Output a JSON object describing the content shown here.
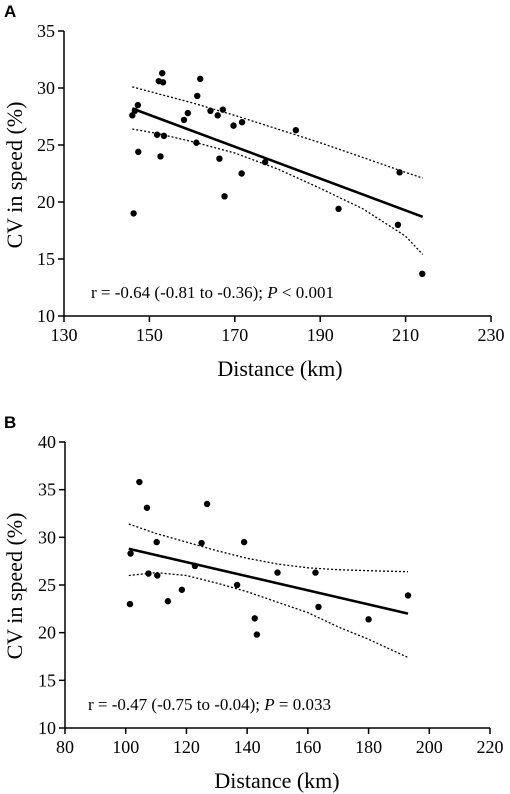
{
  "chart_data": [
    {
      "type": "scatter",
      "panel_label": "A",
      "xlabel": "Distance (km)",
      "ylabel": "CV in speed (%)",
      "xlim": [
        130,
        230
      ],
      "ylim": [
        10,
        35
      ],
      "xticks": [
        130,
        150,
        170,
        190,
        210,
        230
      ],
      "yticks": [
        10,
        15,
        20,
        25,
        30,
        35
      ],
      "grid": false,
      "points": [
        {
          "x": 146.3,
          "y": 19.0
        },
        {
          "x": 146.0,
          "y": 27.6
        },
        {
          "x": 146.6,
          "y": 28.0
        },
        {
          "x": 147.3,
          "y": 28.5
        },
        {
          "x": 147.4,
          "y": 24.4
        },
        {
          "x": 151.8,
          "y": 25.9
        },
        {
          "x": 152.2,
          "y": 30.6
        },
        {
          "x": 152.6,
          "y": 24.0
        },
        {
          "x": 153.0,
          "y": 31.3
        },
        {
          "x": 153.2,
          "y": 30.5
        },
        {
          "x": 153.4,
          "y": 25.8
        },
        {
          "x": 158.1,
          "y": 27.2
        },
        {
          "x": 159.0,
          "y": 27.8
        },
        {
          "x": 161.0,
          "y": 25.2
        },
        {
          "x": 161.2,
          "y": 29.3
        },
        {
          "x": 161.9,
          "y": 30.8
        },
        {
          "x": 164.3,
          "y": 28.0
        },
        {
          "x": 166.0,
          "y": 27.6
        },
        {
          "x": 166.4,
          "y": 23.8
        },
        {
          "x": 167.2,
          "y": 28.1
        },
        {
          "x": 167.6,
          "y": 20.5
        },
        {
          "x": 169.7,
          "y": 26.7
        },
        {
          "x": 171.6,
          "y": 22.5
        },
        {
          "x": 171.7,
          "y": 27.0
        },
        {
          "x": 177.1,
          "y": 23.5
        },
        {
          "x": 184.3,
          "y": 26.3
        },
        {
          "x": 194.3,
          "y": 19.4
        },
        {
          "x": 208.2,
          "y": 18.0
        },
        {
          "x": 208.6,
          "y": 22.6
        },
        {
          "x": 213.9,
          "y": 13.7
        }
      ],
      "fit_line": {
        "x": [
          146,
          214
        ],
        "y": [
          28.2,
          18.7
        ]
      },
      "ci_upper": {
        "x": [
          146,
          152,
          160,
          170,
          180,
          190,
          200,
          210,
          214
        ],
        "y": [
          30.1,
          29.5,
          28.7,
          27.6,
          26.4,
          25.2,
          23.9,
          22.6,
          22.1
        ]
      },
      "ci_lower": {
        "x": [
          146,
          152,
          160,
          170,
          180,
          190,
          200,
          210,
          214
        ],
        "y": [
          26.4,
          26.0,
          25.3,
          24.3,
          22.9,
          21.2,
          19.4,
          17.0,
          15.4
        ]
      },
      "annotation": {
        "prefix": "r = -0.64 (-0.81 to -0.36); ",
        "p_symbol": "P",
        "suffix": " < 0.001"
      }
    },
    {
      "type": "scatter",
      "panel_label": "B",
      "xlabel": "Distance (km)",
      "ylabel": "CV in speed (%)",
      "xlim": [
        80,
        220
      ],
      "ylim": [
        10,
        40
      ],
      "xticks": [
        80,
        100,
        120,
        140,
        160,
        180,
        200,
        220
      ],
      "yticks": [
        10,
        15,
        20,
        25,
        30,
        35,
        40
      ],
      "grid": false,
      "points": [
        {
          "x": 101.4,
          "y": 23.0
        },
        {
          "x": 101.6,
          "y": 28.3
        },
        {
          "x": 104.5,
          "y": 35.8
        },
        {
          "x": 107.0,
          "y": 33.1
        },
        {
          "x": 107.5,
          "y": 26.2
        },
        {
          "x": 110.2,
          "y": 29.5
        },
        {
          "x": 110.4,
          "y": 26.0
        },
        {
          "x": 113.9,
          "y": 23.3
        },
        {
          "x": 118.5,
          "y": 24.5
        },
        {
          "x": 122.8,
          "y": 27.0
        },
        {
          "x": 125.0,
          "y": 29.4
        },
        {
          "x": 126.8,
          "y": 33.5
        },
        {
          "x": 136.7,
          "y": 25.0
        },
        {
          "x": 139.0,
          "y": 29.5
        },
        {
          "x": 142.5,
          "y": 21.5
        },
        {
          "x": 143.2,
          "y": 19.8
        },
        {
          "x": 150.0,
          "y": 26.3
        },
        {
          "x": 162.5,
          "y": 26.3
        },
        {
          "x": 163.5,
          "y": 22.7
        },
        {
          "x": 180.0,
          "y": 21.4
        },
        {
          "x": 193.0,
          "y": 23.9
        }
      ],
      "fit_line": {
        "x": [
          101,
          193
        ],
        "y": [
          28.8,
          22.0
        ]
      },
      "ci_upper": {
        "x": [
          101,
          110,
          120,
          130,
          140,
          150,
          160,
          170,
          180,
          193
        ],
        "y": [
          31.4,
          30.4,
          29.5,
          28.6,
          27.8,
          27.2,
          26.8,
          26.6,
          26.5,
          26.4
        ]
      },
      "ci_lower": {
        "x": [
          101,
          110,
          120,
          130,
          140,
          150,
          160,
          170,
          180,
          193
        ],
        "y": [
          26.0,
          26.3,
          26.0,
          25.2,
          24.3,
          23.2,
          22.1,
          20.6,
          19.3,
          17.4
        ]
      },
      "annotation": {
        "prefix": "r = -0.47 (-0.75 to -0.04); ",
        "p_symbol": "P",
        "suffix": " = 0.033"
      }
    }
  ]
}
